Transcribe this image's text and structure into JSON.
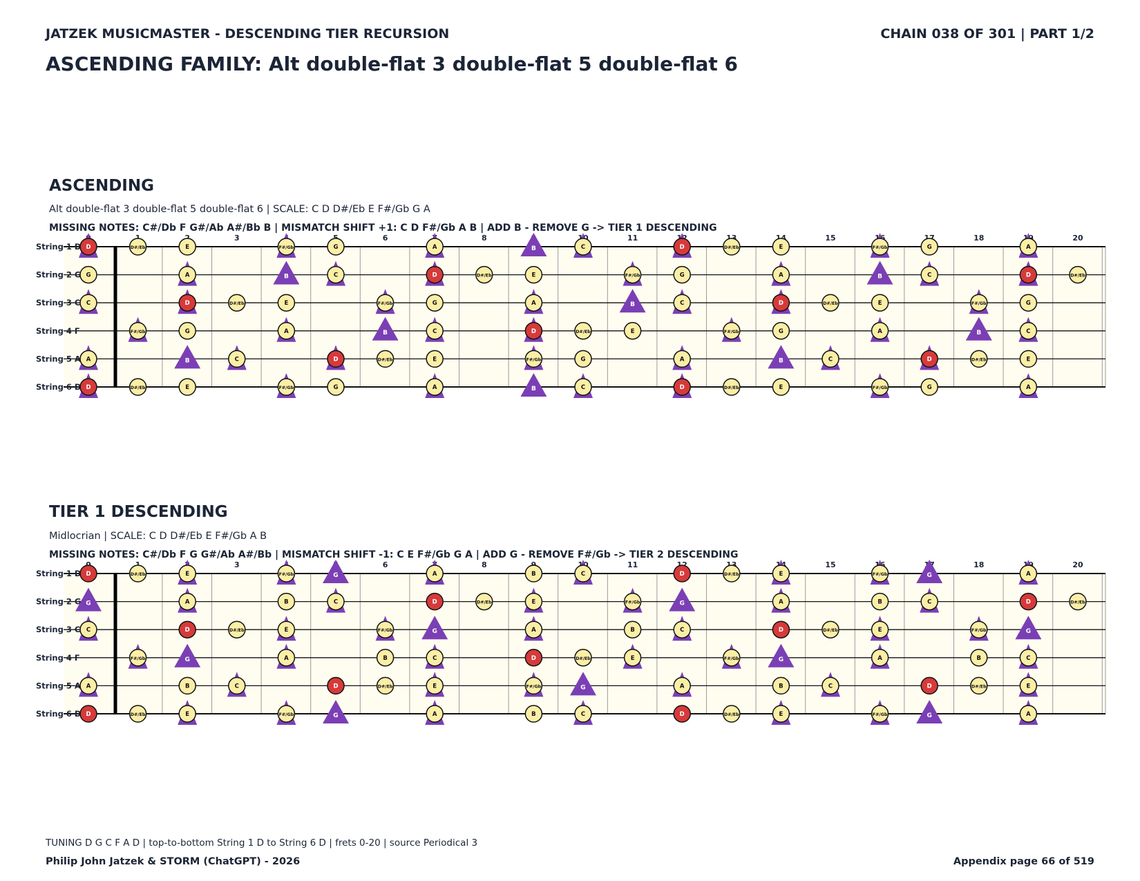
{
  "header": {
    "left": "JATZEK MUSICMASTER - DESCENDING TIER RECURSION",
    "right": "CHAIN 038 OF 301  |  PART 1/2",
    "title": "ASCENDING FAMILY: Alt double-flat 3 double-flat 5 double-flat 6"
  },
  "fretboard": {
    "strings": [
      "String 1 D",
      "String 2 G",
      "String 3 C",
      "String 4 F",
      "String 5 A",
      "String 6 D"
    ],
    "open_notes": [
      "D",
      "G",
      "C",
      "F",
      "A",
      "D"
    ],
    "fret_numbers": [
      "0",
      "1",
      "2",
      "3",
      "4",
      "5",
      "6",
      "7",
      "8",
      "9",
      "10",
      "11",
      "12",
      "13",
      "14",
      "15",
      "16",
      "17",
      "18",
      "19",
      "20"
    ],
    "chromatic": [
      "C",
      "C#/Db",
      "D",
      "D#/Eb",
      "E",
      "F",
      "F#/Gb",
      "G",
      "G#/Ab",
      "A",
      "A#/Bb",
      "B"
    ],
    "root": "D",
    "colors": {
      "note_fill": "#fbeea6",
      "root_fill": "#d63a3a",
      "triangle": "#7b3fb5",
      "board": "#fffdf0"
    }
  },
  "sections": [
    {
      "title": "ASCENDING",
      "subtitle": "Alt double-flat 3 double-flat 5 double-flat 6  |  SCALE: C D D#/Eb E F#/Gb G A",
      "missing": "MISSING NOTES: C#/Db F G#/Ab A#/Bb B  |  MISMATCH SHIFT +1: C D F#/Gb A B  |  ADD B - REMOVE G -> TIER 1 DESCENDING",
      "scale": [
        "C",
        "D",
        "D#/Eb",
        "E",
        "F#/Gb",
        "G",
        "A"
      ],
      "triangles": [
        "C",
        "D",
        "F#/Gb",
        "A",
        "B"
      ],
      "big_triangles": [
        "B"
      ]
    },
    {
      "title": "TIER 1 DESCENDING",
      "subtitle": "Midlocrian  |  SCALE: C D D#/Eb E F#/Gb A B",
      "missing": "MISSING NOTES: C#/Db F G G#/Ab A#/Bb  |  MISMATCH SHIFT -1: C E F#/Gb G A  |  ADD G - REMOVE F#/Gb -> TIER 2 DESCENDING",
      "scale": [
        "C",
        "D",
        "D#/Eb",
        "E",
        "F#/Gb",
        "A",
        "B"
      ],
      "triangles": [
        "C",
        "E",
        "F#/Gb",
        "G",
        "A"
      ],
      "big_triangles": [
        "G"
      ]
    }
  ],
  "footer": {
    "tuning": "TUNING D G C F A D | top-to-bottom String 1 D to String 6 D | frets 0-20 | source Periodical 3",
    "author": "Philip John Jatzek & STORM (ChatGPT) - 2026",
    "page": "Appendix page 66 of 519"
  }
}
